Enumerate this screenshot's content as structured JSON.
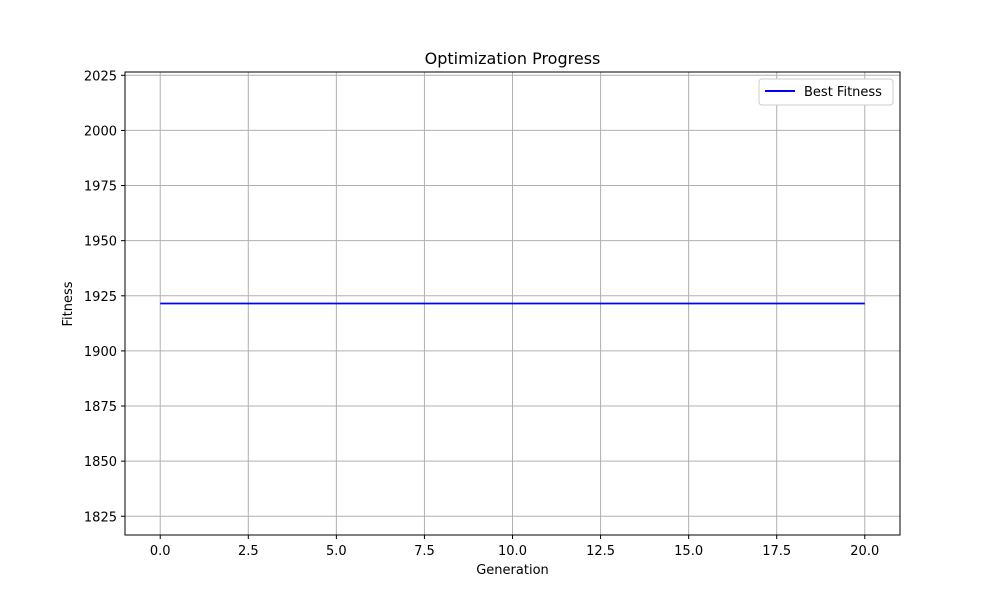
{
  "chart_data": {
    "type": "line",
    "title": "Optimization Progress",
    "xlabel": "Generation",
    "ylabel": "Fitness",
    "xlim": [
      -1,
      21
    ],
    "ylim": [
      1816.5,
      2026.5
    ],
    "x_ticks": [
      0,
      2.5,
      5,
      7.5,
      10,
      12.5,
      15,
      17.5,
      20
    ],
    "x_tick_labels": [
      "0.0",
      "2.5",
      "5.0",
      "7.5",
      "10.0",
      "12.5",
      "15.0",
      "17.5",
      "20.0"
    ],
    "y_ticks": [
      1825,
      1850,
      1875,
      1900,
      1925,
      1950,
      1975,
      2000,
      2025
    ],
    "y_tick_labels": [
      "1825",
      "1850",
      "1875",
      "1900",
      "1925",
      "1950",
      "1975",
      "2000",
      "2025"
    ],
    "grid": true,
    "legend_position": "top-right",
    "series": [
      {
        "name": "Best Fitness",
        "color": "#0000ff",
        "x": [
          0,
          1,
          2,
          3,
          4,
          5,
          6,
          7,
          8,
          9,
          10,
          11,
          12,
          13,
          14,
          15,
          16,
          17,
          18,
          19,
          20
        ],
        "values": [
          1921.5,
          1921.5,
          1921.5,
          1921.5,
          1921.5,
          1921.5,
          1921.5,
          1921.5,
          1921.5,
          1921.5,
          1921.5,
          1921.5,
          1921.5,
          1921.5,
          1921.5,
          1921.5,
          1921.5,
          1921.5,
          1921.5,
          1921.5,
          1921.5
        ]
      }
    ]
  }
}
